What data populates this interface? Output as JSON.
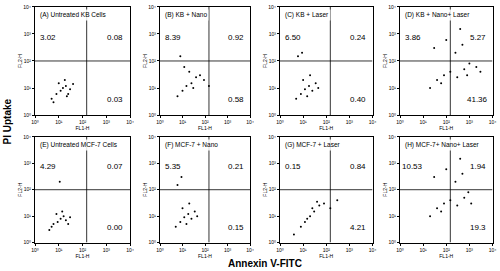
{
  "chart_data": {
    "type": "scatter",
    "x_label": "Annexin V-FITC",
    "y_label": "PI Uptake",
    "panel_x_label": "FL1-H",
    "panel_y_label": "FL2-H",
    "log": true,
    "grid": false,
    "color": "#000000",
    "marker": "dot",
    "xlim": [
      1,
      10000
    ],
    "ylim": [
      1,
      10000
    ],
    "xticks": [
      {
        "value": 1,
        "label": "10⁰"
      },
      {
        "value": 10,
        "label": "10¹"
      },
      {
        "value": 100,
        "label": "10²"
      },
      {
        "value": 1000,
        "label": "10³"
      },
      {
        "value": 10000,
        "label": "10⁴"
      }
    ],
    "yticks": [
      {
        "value": 1,
        "label": "10⁰"
      },
      {
        "value": 10,
        "label": "10¹"
      },
      {
        "value": 100,
        "label": "10²"
      },
      {
        "value": 1000,
        "label": "10³"
      },
      {
        "value": 10000,
        "label": "10⁴"
      }
    ],
    "gate": {
      "x": 150,
      "y": 100
    },
    "panels": [
      {
        "title": "(A) Untreated KB Cells",
        "quadrants": {
          "upper_left": 3.02,
          "upper_right": 0.08,
          "lower_right": 0.03
        },
        "x": [
          5,
          8,
          12,
          15,
          20,
          25,
          30,
          10,
          18,
          40,
          6,
          22
        ],
        "y": [
          4,
          6,
          8,
          10,
          12,
          6,
          9,
          15,
          20,
          14,
          3,
          5
        ]
      },
      {
        "title": "(B) KB + Nano",
        "quadrants": {
          "upper_left": 8.39,
          "upper_right": 0.92,
          "lower_right": 0.58
        },
        "x": [
          6,
          10,
          15,
          25,
          40,
          60,
          90,
          20,
          12,
          30,
          8,
          150
        ],
        "y": [
          5,
          8,
          12,
          15,
          25,
          30,
          20,
          40,
          60,
          10,
          150,
          12
        ]
      },
      {
        "title": "(C) KB + Laser",
        "quadrants": {
          "upper_left": 6.5,
          "upper_right": 0.24,
          "lower_right": 0.4
        },
        "quadrant_labels": {
          "upper_left": "6.50",
          "lower_right": "0.40"
        },
        "x": [
          5,
          8,
          12,
          18,
          25,
          35,
          10,
          15,
          20,
          6,
          45,
          9
        ],
        "y": [
          4,
          6,
          9,
          12,
          8,
          15,
          20,
          5,
          30,
          150,
          10,
          200
        ]
      },
      {
        "title": "(D) KB + Nano+ Laser",
        "quadrants": {
          "upper_left": 3.86,
          "upper_right": 5.27,
          "lower_right": 41.36
        },
        "x": [
          20,
          40,
          80,
          150,
          300,
          600,
          1000,
          2000,
          250,
          500,
          100,
          60,
          800,
          400,
          3000,
          30
        ],
        "y": [
          10,
          20,
          30,
          40,
          25,
          50,
          80,
          60,
          200,
          400,
          600,
          15,
          30,
          1500,
          40,
          300
        ]
      },
      {
        "title": "(E) Untreated MCF-7 Cells",
        "quadrants": {
          "upper_left": 4.29,
          "upper_right": 0.07,
          "lower_right": 0
        },
        "quadrant_labels": {
          "lower_right": "0.00"
        },
        "x": [
          4,
          6,
          9,
          12,
          16,
          20,
          25,
          8,
          14,
          5,
          30,
          11
        ],
        "y": [
          3,
          5,
          6,
          8,
          10,
          7,
          5,
          12,
          15,
          4,
          9,
          200
        ]
      },
      {
        "title": "(F) MCF-7 + Nano",
        "quadrants": {
          "upper_left": 5.35,
          "upper_right": 0.21,
          "lower_right": 0.15
        },
        "x": [
          5,
          8,
          12,
          18,
          25,
          35,
          10,
          15,
          20,
          6,
          45,
          9
        ],
        "y": [
          4,
          6,
          9,
          12,
          8,
          15,
          20,
          5,
          30,
          150,
          10,
          300
        ]
      },
      {
        "title": "(G) MCF-7 + Laser",
        "quadrants": {
          "upper_left": 0.15,
          "upper_right": 0.84,
          "lower_right": 4.21
        },
        "x": [
          4,
          8,
          12,
          20,
          30,
          50,
          80,
          150,
          300,
          15,
          25,
          40
        ],
        "y": [
          2,
          4,
          6,
          10,
          15,
          25,
          30,
          20,
          40,
          8,
          20,
          35
        ]
      },
      {
        "title": "(H) MCF-7+ Nano+ Laser",
        "quadrants": {
          "upper_left": 10.53,
          "upper_right": 1.94,
          "lower_right": 19.3
        },
        "x": [
          20,
          40,
          80,
          150,
          300,
          600,
          900,
          250,
          500,
          100,
          60,
          30,
          1200,
          400
        ],
        "y": [
          10,
          20,
          30,
          40,
          25,
          50,
          80,
          200,
          400,
          600,
          15,
          300,
          30,
          1500
        ]
      }
    ]
  }
}
